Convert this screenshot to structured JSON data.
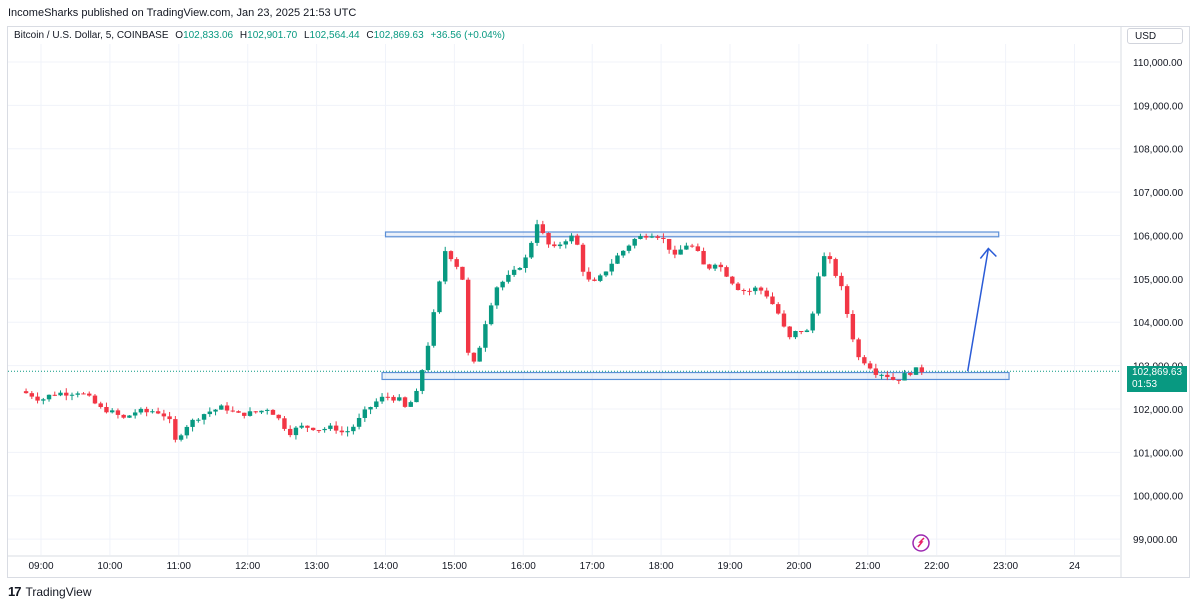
{
  "header": {
    "publisher_line": "IncomeSharks published on TradingView.com, Jan 23, 2025 21:53 UTC"
  },
  "legend": {
    "symbol": "Bitcoin / U.S. Dollar, 5, COINBASE",
    "o_label": "O",
    "o_value": "102,833.06",
    "h_label": "H",
    "h_value": "102,901.70",
    "l_label": "L",
    "l_value": "102,564.44",
    "c_label": "C",
    "c_value": "102,869.63",
    "change": "+36.56 (+0.04%)"
  },
  "currency_button": "USD",
  "last_price": {
    "value": "102,869.63",
    "countdown": "01:53"
  },
  "footer": {
    "brand": "TradingView",
    "brand_mark": "17"
  },
  "colors": {
    "up": "#089981",
    "down": "#f23645",
    "zone": "#5b8fd6",
    "arrow": "#2a5bd7"
  },
  "chart_data": {
    "type": "candlestick",
    "title": "",
    "xlabel": "",
    "ylabel": "",
    "ylim": [
      98850,
      110450
    ],
    "y_ticks": [
      "110,000.00",
      "109,000.00",
      "108,000.00",
      "107,000.00",
      "106,000.00",
      "105,000.00",
      "104,000.00",
      "103,000.00",
      "102,000.00",
      "101,000.00",
      "100,000.00",
      "99,000.00"
    ],
    "y_tick_values": [
      110000,
      109000,
      108000,
      107000,
      106000,
      105000,
      104000,
      103000,
      102000,
      101000,
      100000,
      99000
    ],
    "x_ticks": [
      "09:00",
      "10:00",
      "11:00",
      "12:00",
      "13:00",
      "14:00",
      "15:00",
      "16:00",
      "17:00",
      "18:00",
      "19:00",
      "20:00",
      "21:00",
      "22:00",
      "23:00",
      "24"
    ],
    "x_tick_hours": [
      9,
      10,
      11,
      12,
      13,
      14,
      15,
      16,
      17,
      18,
      19,
      20,
      21,
      22,
      23,
      24
    ],
    "grid": true,
    "close_path": [
      [
        8.7,
        102410
      ],
      [
        8.85,
        102330
      ],
      [
        9.0,
        102200
      ],
      [
        9.1,
        102300
      ],
      [
        9.25,
        102370
      ],
      [
        9.4,
        102360
      ],
      [
        9.55,
        102400
      ],
      [
        9.7,
        102250
      ],
      [
        9.85,
        102020
      ],
      [
        10.0,
        101950
      ],
      [
        10.2,
        101780
      ],
      [
        10.4,
        101960
      ],
      [
        10.55,
        101920
      ],
      [
        10.65,
        101970
      ],
      [
        10.85,
        101800
      ],
      [
        10.95,
        101260
      ],
      [
        11.1,
        101600
      ],
      [
        11.25,
        101780
      ],
      [
        11.4,
        101920
      ],
      [
        11.5,
        101970
      ],
      [
        11.65,
        102050
      ],
      [
        11.85,
        101870
      ],
      [
        12.0,
        101900
      ],
      [
        12.15,
        101930
      ],
      [
        12.3,
        102020
      ],
      [
        12.45,
        101770
      ],
      [
        12.6,
        101440
      ],
      [
        12.75,
        101590
      ],
      [
        12.9,
        101580
      ],
      [
        13.05,
        101530
      ],
      [
        13.25,
        101580
      ],
      [
        13.4,
        101430
      ],
      [
        13.55,
        101620
      ],
      [
        13.7,
        101930
      ],
      [
        13.85,
        102150
      ],
      [
        14.0,
        102300
      ],
      [
        14.2,
        102210
      ],
      [
        14.3,
        101990
      ],
      [
        14.45,
        102360
      ],
      [
        14.6,
        103350
      ],
      [
        14.75,
        104600
      ],
      [
        14.9,
        105950
      ],
      [
        15.0,
        105060
      ],
      [
        15.1,
        105800
      ],
      [
        15.15,
        103400
      ],
      [
        15.3,
        103000
      ],
      [
        15.45,
        104000
      ],
      [
        15.6,
        104800
      ],
      [
        15.75,
        105000
      ],
      [
        15.9,
        105200
      ],
      [
        16.05,
        105500
      ],
      [
        16.2,
        106300
      ],
      [
        16.35,
        105800
      ],
      [
        16.45,
        105700
      ],
      [
        16.6,
        105900
      ],
      [
        16.75,
        106000
      ],
      [
        16.9,
        104980
      ],
      [
        17.05,
        104900
      ],
      [
        17.2,
        105200
      ],
      [
        17.35,
        105500
      ],
      [
        17.45,
        105650
      ],
      [
        17.6,
        105900
      ],
      [
        17.75,
        106000
      ],
      [
        17.9,
        106050
      ],
      [
        18.05,
        105880
      ],
      [
        18.2,
        105500
      ],
      [
        18.35,
        105800
      ],
      [
        18.5,
        105700
      ],
      [
        18.65,
        105200
      ],
      [
        18.8,
        105400
      ],
      [
        18.95,
        105100
      ],
      [
        19.1,
        104800
      ],
      [
        19.25,
        104700
      ],
      [
        19.4,
        104800
      ],
      [
        19.55,
        104600
      ],
      [
        19.7,
        104200
      ],
      [
        19.85,
        103600
      ],
      [
        20.0,
        103850
      ],
      [
        20.1,
        103700
      ],
      [
        20.2,
        104200
      ],
      [
        20.3,
        105300
      ],
      [
        20.4,
        105600
      ],
      [
        20.5,
        105200
      ],
      [
        20.6,
        104900
      ],
      [
        20.7,
        104200
      ],
      [
        20.85,
        103200
      ],
      [
        21.0,
        103050
      ],
      [
        21.1,
        102850
      ],
      [
        21.25,
        102800
      ],
      [
        21.4,
        102650
      ],
      [
        21.55,
        102800
      ],
      [
        21.7,
        102900
      ],
      [
        21.85,
        102870
      ]
    ],
    "annotations": {
      "resistance_zone": {
        "x0": 14.0,
        "x1": 22.9,
        "y0": 105970,
        "y1": 106080
      },
      "support_zone": {
        "x0": 13.95,
        "x1": 23.05,
        "y0": 102680,
        "y1": 102840
      },
      "arrow": {
        "from": [
          22.45,
          102870
        ],
        "to": [
          22.75,
          105700
        ]
      }
    },
    "last_price_value": 102869.63
  }
}
